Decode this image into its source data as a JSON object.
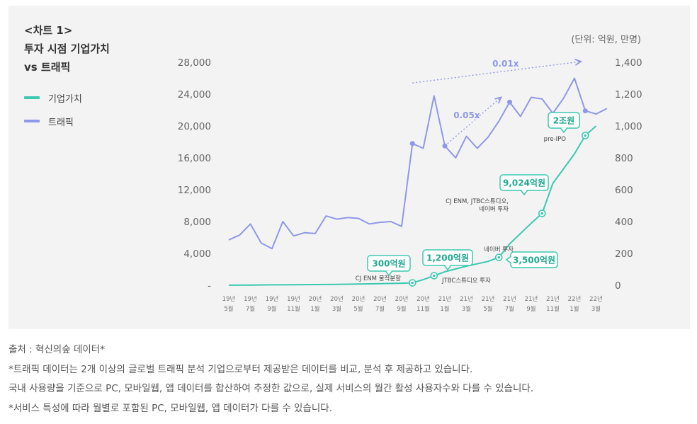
{
  "chart_data": {
    "type": "line",
    "title": "<차트 1>",
    "title_lines": [
      "<차트 1>",
      "투자 시점 기업가치",
      "vs 트래픽"
    ],
    "unit_label": "(단위: 억원, 만명)",
    "left_axis": {
      "ticks": [
        "28,000",
        "24,000",
        "20,000",
        "16,000",
        "12,000",
        "8,000",
        "4,000",
        "-"
      ],
      "range": [
        0,
        28000
      ]
    },
    "right_axis": {
      "ticks": [
        "1,400",
        "1,200",
        "1,000",
        "800",
        "600",
        "400",
        "200",
        "0"
      ],
      "range": [
        0,
        1400
      ]
    },
    "x_labels": [
      [
        "19년",
        "5월"
      ],
      [
        "19년",
        "7월"
      ],
      [
        "19년",
        "9월"
      ],
      [
        "19년",
        "11월"
      ],
      [
        "20년",
        "1월"
      ],
      [
        "20년",
        "3월"
      ],
      [
        "20년",
        "5월"
      ],
      [
        "20년",
        "7월"
      ],
      [
        "20년",
        "9월"
      ],
      [
        "20년",
        "11월"
      ],
      [
        "21년",
        "1월"
      ],
      [
        "21년",
        "3월"
      ],
      [
        "21년",
        "5월"
      ],
      [
        "21년",
        "7월"
      ],
      [
        "21년",
        "9월"
      ],
      [
        "21년",
        "11월"
      ],
      [
        "22년",
        "1월"
      ],
      [
        "22년",
        "3월"
      ]
    ],
    "series": [
      {
        "name": "기업가치",
        "color": "#3cc9b0",
        "axis": "left",
        "points": [
          [
            0,
            10
          ],
          [
            1,
            30
          ],
          [
            2,
            50
          ],
          [
            3,
            70
          ],
          [
            4,
            90
          ],
          [
            5,
            110
          ],
          [
            6,
            150
          ],
          [
            7,
            200
          ],
          [
            8,
            260
          ],
          [
            8.5,
            300
          ],
          [
            9,
            700
          ],
          [
            9.5,
            1200
          ],
          [
            10,
            1700
          ],
          [
            11,
            2400
          ],
          [
            12,
            3000
          ],
          [
            12.5,
            3500
          ],
          [
            13,
            5200
          ],
          [
            14,
            7800
          ],
          [
            14.5,
            9024
          ],
          [
            15,
            12800
          ],
          [
            16,
            16500
          ],
          [
            16.5,
            18800
          ],
          [
            17,
            20000
          ]
        ]
      },
      {
        "name": "트래픽",
        "color": "#8f98e8",
        "axis": "right",
        "points": [
          [
            0,
            285
          ],
          [
            0.5,
            315
          ],
          [
            1,
            385
          ],
          [
            1.5,
            265
          ],
          [
            2,
            230
          ],
          [
            2.5,
            400
          ],
          [
            3,
            310
          ],
          [
            3.5,
            330
          ],
          [
            4,
            325
          ],
          [
            4.5,
            435
          ],
          [
            5,
            415
          ],
          [
            5.5,
            425
          ],
          [
            6,
            420
          ],
          [
            6.5,
            385
          ],
          [
            7,
            395
          ],
          [
            7.5,
            400
          ],
          [
            8,
            370
          ],
          [
            8.5,
            890
          ],
          [
            9,
            860
          ],
          [
            9.5,
            1190
          ],
          [
            10,
            875
          ],
          [
            10.5,
            800
          ],
          [
            11,
            935
          ],
          [
            11.5,
            860
          ],
          [
            12,
            930
          ],
          [
            12.5,
            1030
          ],
          [
            13,
            1150
          ],
          [
            13.5,
            1060
          ],
          [
            14,
            1180
          ],
          [
            14.5,
            1170
          ],
          [
            15,
            1080
          ],
          [
            15.5,
            1175
          ],
          [
            16,
            1300
          ],
          [
            16.5,
            1095
          ],
          [
            17,
            1075
          ],
          [
            17.5,
            1110
          ]
        ]
      }
    ],
    "annotations": [
      {
        "label": "300억원",
        "note": "CJ ENM 물적분할",
        "x": 8.5,
        "value": 300
      },
      {
        "label": "1,200억원",
        "note": "JTBC스튜디오 투자",
        "x": 9.5,
        "value": 1200
      },
      {
        "label": "3,500억원",
        "note": "네이버 투자",
        "x": 12.5,
        "value": 3500
      },
      {
        "label": "9,024억원",
        "note_lines": [
          "CJ ENM, JTBC스튜디오,",
          "네이버 투자"
        ],
        "x": 14.5,
        "value": 9024
      },
      {
        "label": "2조원",
        "note": "pre-IPO",
        "x": 16.5,
        "value": 18800
      }
    ],
    "traffic_markers": [
      8.5,
      10,
      13,
      16.5
    ],
    "growth_labels": [
      "0.05x",
      "0.01x"
    ],
    "legend": [
      "기업가치",
      "트래픽"
    ]
  },
  "notes": {
    "source": "출처 : 혁신의숲 데이터*",
    "line1": "*트래픽 데이터는 2개 이상의 글로벌 트래픽 분석 기업으로부터 제공받은 데이터를 비교, 분석 후 제공하고 있습니다.",
    "line2": "국내 사용량을 기준으로 PC, 모바일웹, 앱 데이터를 합산하여 추정한 값으로, 실제 서비스의 월간 활성 사용자수와 다를 수 있습니다.",
    "line3": "*서비스 특성에 따라 월별로 포함된 PC, 모바일웹, 앱 데이터가 다를 수 있습니다."
  }
}
